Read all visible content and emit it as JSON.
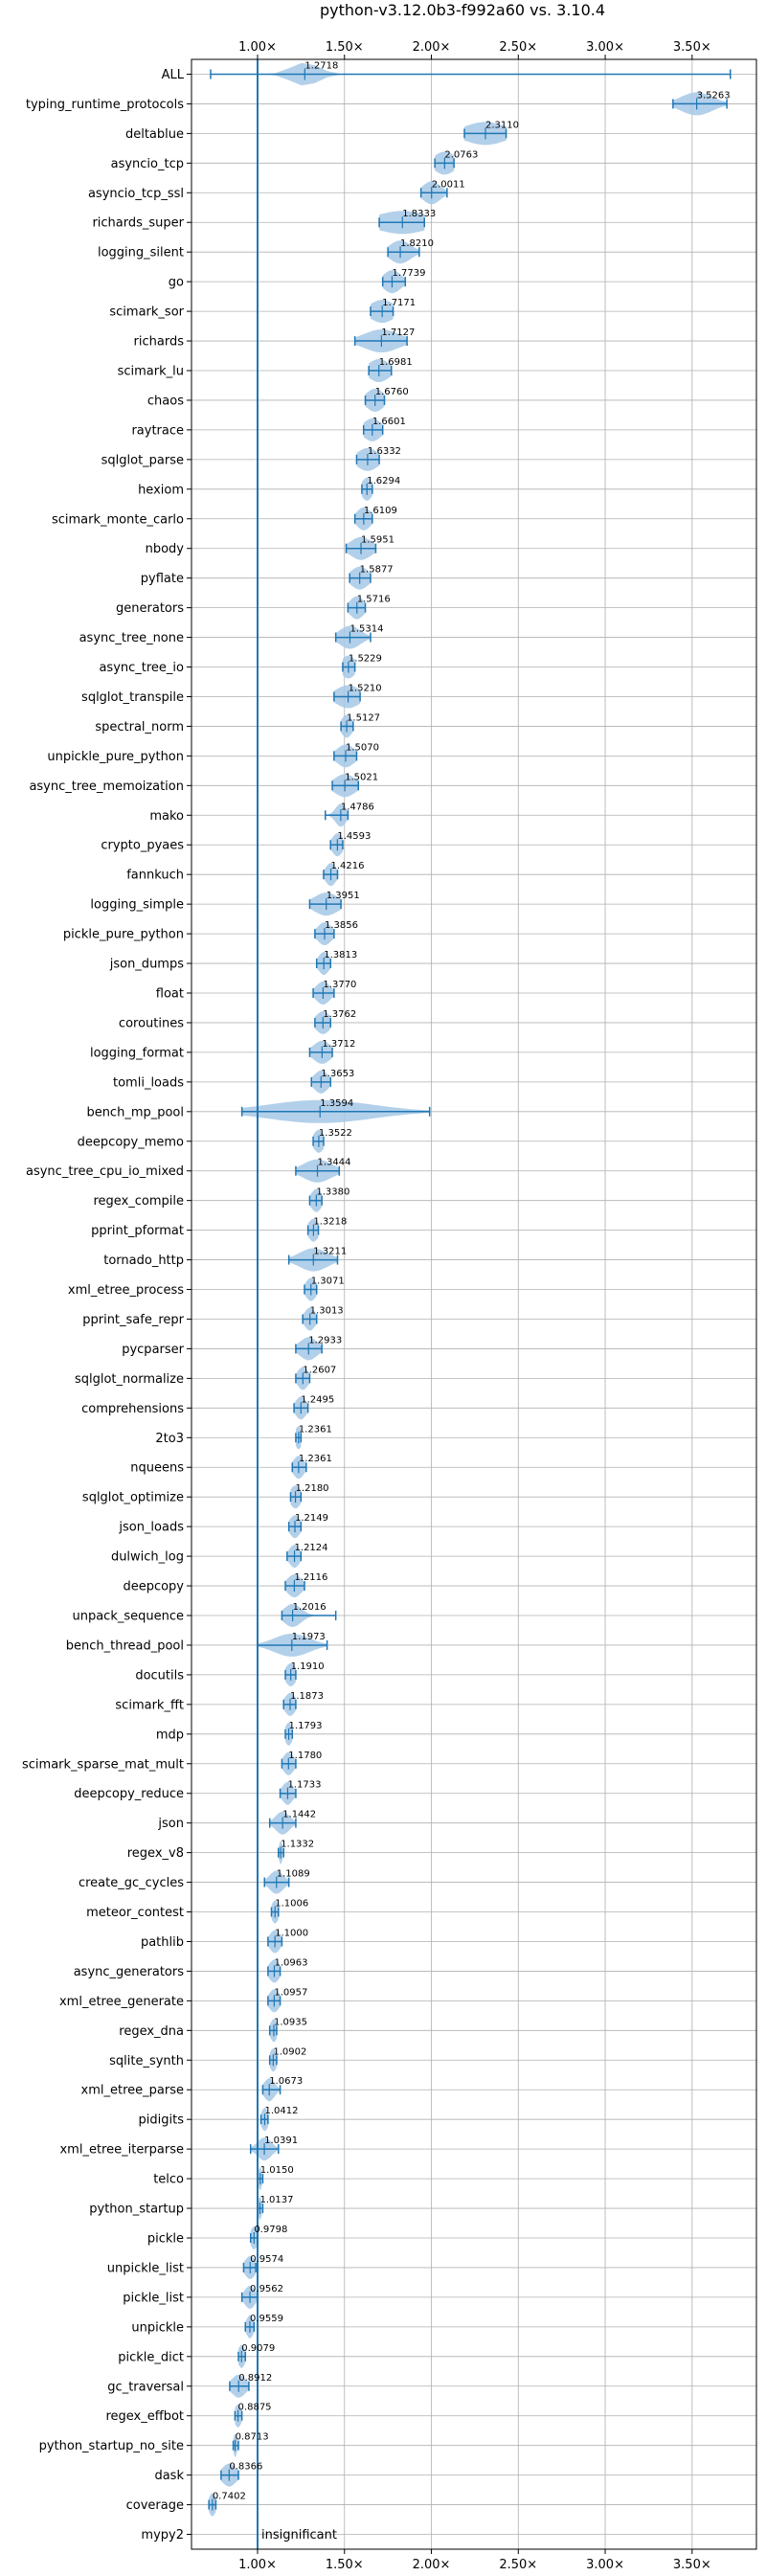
{
  "chart_data": {
    "type": "violin",
    "title": "python-v3.12.0b3-f992a60 vs. 3.10.4",
    "orientation": "horizontal",
    "x_ticks": [
      "1.00×",
      "1.50×",
      "2.00×",
      "2.50×",
      "3.00×",
      "3.50×"
    ],
    "x_tick_values": [
      1.0,
      1.5,
      2.0,
      2.5,
      3.0,
      3.5
    ],
    "xlim": [
      0.62,
      3.87
    ],
    "reference_line": 1.0,
    "grid": true,
    "colors": {
      "fill": "#a6c8e6",
      "line": "#1f77b4",
      "grid": "#b0b0b0"
    },
    "annotation": "insignificant",
    "benchmarks": [
      {
        "name": "ALL",
        "value": 1.2718,
        "low": 0.73,
        "high": 3.72,
        "spread": 0.08
      },
      {
        "name": "typing_runtime_protocols",
        "value": 3.5263,
        "low": 3.39,
        "high": 3.7,
        "spread": 0.09
      },
      {
        "name": "deltablue",
        "value": 2.311,
        "low": 2.19,
        "high": 2.43,
        "spread": 0.12
      },
      {
        "name": "asyncio_tcp",
        "value": 2.0763,
        "low": 2.02,
        "high": 2.13,
        "spread": 0.06
      },
      {
        "name": "asyncio_tcp_ssl",
        "value": 2.0011,
        "low": 1.94,
        "high": 2.09,
        "spread": 0.05
      },
      {
        "name": "richards_super",
        "value": 1.8333,
        "low": 1.7,
        "high": 1.96,
        "spread": 0.15
      },
      {
        "name": "logging_silent",
        "value": 1.821,
        "low": 1.75,
        "high": 1.93,
        "spread": 0.06
      },
      {
        "name": "go",
        "value": 1.7739,
        "low": 1.72,
        "high": 1.85,
        "spread": 0.05
      },
      {
        "name": "scimark_sor",
        "value": 1.7171,
        "low": 1.65,
        "high": 1.78,
        "spread": 0.07
      },
      {
        "name": "richards",
        "value": 1.7127,
        "low": 1.56,
        "high": 1.86,
        "spread": 0.1
      },
      {
        "name": "scimark_lu",
        "value": 1.6981,
        "low": 1.64,
        "high": 1.77,
        "spread": 0.06
      },
      {
        "name": "chaos",
        "value": 1.676,
        "low": 1.62,
        "high": 1.73,
        "spread": 0.05
      },
      {
        "name": "raytrace",
        "value": 1.6601,
        "low": 1.61,
        "high": 1.72,
        "spread": 0.05
      },
      {
        "name": "sqlglot_parse",
        "value": 1.6332,
        "low": 1.57,
        "high": 1.7,
        "spread": 0.06
      },
      {
        "name": "hexiom",
        "value": 1.6294,
        "low": 1.6,
        "high": 1.66,
        "spread": 0.03
      },
      {
        "name": "scimark_monte_carlo",
        "value": 1.6109,
        "low": 1.56,
        "high": 1.66,
        "spread": 0.04
      },
      {
        "name": "nbody",
        "value": 1.5951,
        "low": 1.51,
        "high": 1.68,
        "spread": 0.06
      },
      {
        "name": "pyflate",
        "value": 1.5877,
        "low": 1.53,
        "high": 1.65,
        "spread": 0.05
      },
      {
        "name": "generators",
        "value": 1.5716,
        "low": 1.52,
        "high": 1.62,
        "spread": 0.04
      },
      {
        "name": "async_tree_none",
        "value": 1.5314,
        "low": 1.45,
        "high": 1.65,
        "spread": 0.06
      },
      {
        "name": "async_tree_io",
        "value": 1.5229,
        "low": 1.49,
        "high": 1.56,
        "spread": 0.04
      },
      {
        "name": "sqlglot_transpile",
        "value": 1.521,
        "low": 1.44,
        "high": 1.59,
        "spread": 0.07
      },
      {
        "name": "spectral_norm",
        "value": 1.5127,
        "low": 1.48,
        "high": 1.55,
        "spread": 0.03
      },
      {
        "name": "unpickle_pure_python",
        "value": 1.507,
        "low": 1.44,
        "high": 1.57,
        "spread": 0.05
      },
      {
        "name": "async_tree_memoization",
        "value": 1.5021,
        "low": 1.43,
        "high": 1.58,
        "spread": 0.06
      },
      {
        "name": "mako",
        "value": 1.4786,
        "low": 1.39,
        "high": 1.52,
        "spread": 0.03
      },
      {
        "name": "crypto_pyaes",
        "value": 1.4593,
        "low": 1.42,
        "high": 1.49,
        "spread": 0.03
      },
      {
        "name": "fannkuch",
        "value": 1.4216,
        "low": 1.38,
        "high": 1.46,
        "spread": 0.03
      },
      {
        "name": "logging_simple",
        "value": 1.3951,
        "low": 1.3,
        "high": 1.48,
        "spread": 0.07
      },
      {
        "name": "pickle_pure_python",
        "value": 1.3856,
        "low": 1.33,
        "high": 1.44,
        "spread": 0.04
      },
      {
        "name": "json_dumps",
        "value": 1.3813,
        "low": 1.34,
        "high": 1.42,
        "spread": 0.03
      },
      {
        "name": "float",
        "value": 1.377,
        "low": 1.32,
        "high": 1.44,
        "spread": 0.04
      },
      {
        "name": "coroutines",
        "value": 1.3762,
        "low": 1.33,
        "high": 1.42,
        "spread": 0.04
      },
      {
        "name": "logging_format",
        "value": 1.3712,
        "low": 1.3,
        "high": 1.43,
        "spread": 0.05
      },
      {
        "name": "tomli_loads",
        "value": 1.3653,
        "low": 1.31,
        "high": 1.42,
        "spread": 0.04
      },
      {
        "name": "bench_mp_pool",
        "value": 1.3594,
        "low": 0.91,
        "high": 1.99,
        "spread": 0.3
      },
      {
        "name": "deepcopy_memo",
        "value": 1.3522,
        "low": 1.32,
        "high": 1.38,
        "spread": 0.03
      },
      {
        "name": "async_tree_cpu_io_mixed",
        "value": 1.3444,
        "low": 1.22,
        "high": 1.47,
        "spread": 0.08
      },
      {
        "name": "regex_compile",
        "value": 1.338,
        "low": 1.3,
        "high": 1.37,
        "spread": 0.03
      },
      {
        "name": "pprint_pformat",
        "value": 1.3218,
        "low": 1.29,
        "high": 1.35,
        "spread": 0.03
      },
      {
        "name": "tornado_http",
        "value": 1.3211,
        "low": 1.18,
        "high": 1.46,
        "spread": 0.08
      },
      {
        "name": "xml_etree_process",
        "value": 1.3071,
        "low": 1.27,
        "high": 1.34,
        "spread": 0.03
      },
      {
        "name": "pprint_safe_repr",
        "value": 1.3013,
        "low": 1.26,
        "high": 1.34,
        "spread": 0.03
      },
      {
        "name": "pycparser",
        "value": 1.2933,
        "low": 1.22,
        "high": 1.37,
        "spread": 0.05
      },
      {
        "name": "sqlglot_normalize",
        "value": 1.2607,
        "low": 1.22,
        "high": 1.3,
        "spread": 0.03
      },
      {
        "name": "comprehensions",
        "value": 1.2495,
        "low": 1.21,
        "high": 1.29,
        "spread": 0.03
      },
      {
        "name": "2to3",
        "value": 1.2361,
        "low": 1.22,
        "high": 1.25,
        "spread": 0.02
      },
      {
        "name": "nqueens",
        "value": 1.2361,
        "low": 1.2,
        "high": 1.28,
        "spread": 0.03
      },
      {
        "name": "sqlglot_optimize",
        "value": 1.218,
        "low": 1.19,
        "high": 1.25,
        "spread": 0.03
      },
      {
        "name": "json_loads",
        "value": 1.2149,
        "low": 1.18,
        "high": 1.25,
        "spread": 0.03
      },
      {
        "name": "dulwich_log",
        "value": 1.2124,
        "low": 1.17,
        "high": 1.25,
        "spread": 0.03
      },
      {
        "name": "deepcopy",
        "value": 1.2116,
        "low": 1.16,
        "high": 1.27,
        "spread": 0.04
      },
      {
        "name": "unpack_sequence",
        "value": 1.2016,
        "low": 1.14,
        "high": 1.45,
        "spread": 0.05
      },
      {
        "name": "bench_thread_pool",
        "value": 1.1973,
        "low": 1.0,
        "high": 1.4,
        "spread": 0.1
      },
      {
        "name": "docutils",
        "value": 1.191,
        "low": 1.16,
        "high": 1.22,
        "spread": 0.03
      },
      {
        "name": "scimark_fft",
        "value": 1.1873,
        "low": 1.15,
        "high": 1.22,
        "spread": 0.03
      },
      {
        "name": "mdp",
        "value": 1.1793,
        "low": 1.16,
        "high": 1.2,
        "spread": 0.02
      },
      {
        "name": "scimark_sparse_mat_mult",
        "value": 1.178,
        "low": 1.14,
        "high": 1.22,
        "spread": 0.03
      },
      {
        "name": "deepcopy_reduce",
        "value": 1.1733,
        "low": 1.13,
        "high": 1.22,
        "spread": 0.03
      },
      {
        "name": "json",
        "value": 1.1442,
        "low": 1.07,
        "high": 1.22,
        "spread": 0.04
      },
      {
        "name": "regex_v8",
        "value": 1.1332,
        "low": 1.12,
        "high": 1.15,
        "spread": 0.01
      },
      {
        "name": "create_gc_cycles",
        "value": 1.1089,
        "low": 1.04,
        "high": 1.18,
        "spread": 0.04
      },
      {
        "name": "meteor_contest",
        "value": 1.1006,
        "low": 1.08,
        "high": 1.12,
        "spread": 0.02
      },
      {
        "name": "pathlib",
        "value": 1.1,
        "low": 1.06,
        "high": 1.14,
        "spread": 0.03
      },
      {
        "name": "async_generators",
        "value": 1.0963,
        "low": 1.06,
        "high": 1.13,
        "spread": 0.03
      },
      {
        "name": "xml_etree_generate",
        "value": 1.0957,
        "low": 1.06,
        "high": 1.13,
        "spread": 0.03
      },
      {
        "name": "regex_dna",
        "value": 1.0935,
        "low": 1.07,
        "high": 1.11,
        "spread": 0.02
      },
      {
        "name": "sqlite_synth",
        "value": 1.0902,
        "low": 1.07,
        "high": 1.11,
        "spread": 0.02
      },
      {
        "name": "xml_etree_parse",
        "value": 1.0673,
        "low": 1.03,
        "high": 1.13,
        "spread": 0.03
      },
      {
        "name": "pidigits",
        "value": 1.0412,
        "low": 1.02,
        "high": 1.06,
        "spread": 0.02
      },
      {
        "name": "xml_etree_iterparse",
        "value": 1.0391,
        "low": 0.96,
        "high": 1.12,
        "spread": 0.04
      },
      {
        "name": "telco",
        "value": 1.015,
        "low": 1.0,
        "high": 1.03,
        "spread": 0.01
      },
      {
        "name": "python_startup",
        "value": 1.0137,
        "low": 1.0,
        "high": 1.03,
        "spread": 0.01
      },
      {
        "name": "pickle",
        "value": 0.9798,
        "low": 0.96,
        "high": 1.0,
        "spread": 0.02
      },
      {
        "name": "unpickle_list",
        "value": 0.9574,
        "low": 0.92,
        "high": 0.99,
        "spread": 0.03
      },
      {
        "name": "pickle_list",
        "value": 0.9562,
        "low": 0.91,
        "high": 1.0,
        "spread": 0.03
      },
      {
        "name": "unpickle",
        "value": 0.9559,
        "low": 0.93,
        "high": 0.98,
        "spread": 0.02
      },
      {
        "name": "pickle_dict",
        "value": 0.9079,
        "low": 0.89,
        "high": 0.93,
        "spread": 0.02
      },
      {
        "name": "gc_traversal",
        "value": 0.8912,
        "low": 0.84,
        "high": 0.95,
        "spread": 0.04
      },
      {
        "name": "regex_effbot",
        "value": 0.8875,
        "low": 0.87,
        "high": 0.91,
        "spread": 0.02
      },
      {
        "name": "python_startup_no_site",
        "value": 0.8713,
        "low": 0.86,
        "high": 0.89,
        "spread": 0.01
      },
      {
        "name": "dask",
        "value": 0.8366,
        "low": 0.79,
        "high": 0.89,
        "spread": 0.04
      },
      {
        "name": "coverage",
        "value": 0.7402,
        "low": 0.72,
        "high": 0.76,
        "spread": 0.02
      },
      {
        "name": "mypy2",
        "value": null
      }
    ]
  }
}
